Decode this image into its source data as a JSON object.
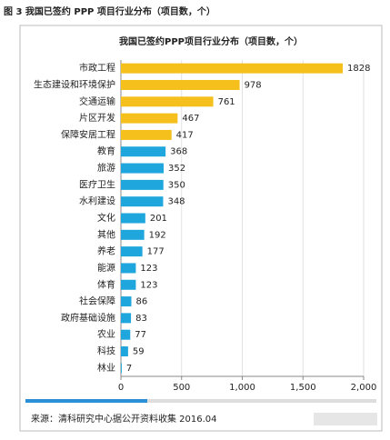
{
  "chart_data": {
    "type": "bar",
    "orientation": "horizontal",
    "caption": "图 3  我国已签约 PPP 项目行业分布（项目数，个）",
    "title": "我国已签约PPP项目行业分布（项目数，个）",
    "categories": [
      "市政工程",
      "生态建设和环境保护",
      "交通运输",
      "片区开发",
      "保障安居工程",
      "教育",
      "旅游",
      "医疗卫生",
      "水利建设",
      "文化",
      "其他",
      "养老",
      "能源",
      "体育",
      "社会保障",
      "政府基础设施",
      "农业",
      "科技",
      "林业"
    ],
    "values": [
      1828,
      978,
      761,
      467,
      417,
      368,
      352,
      350,
      348,
      201,
      192,
      177,
      123,
      123,
      86,
      83,
      77,
      59,
      7
    ],
    "colors": [
      "#f5bf1c",
      "#f5bf1c",
      "#f5bf1c",
      "#f5bf1c",
      "#f5bf1c",
      "#1fa6dc",
      "#1fa6dc",
      "#1fa6dc",
      "#1fa6dc",
      "#1fa6dc",
      "#1fa6dc",
      "#1fa6dc",
      "#1fa6dc",
      "#1fa6dc",
      "#1fa6dc",
      "#1fa6dc",
      "#1fa6dc",
      "#1fa6dc",
      "#1fa6dc"
    ],
    "xlim": [
      0,
      2000
    ],
    "xticks": [
      0,
      500,
      {
        "value": 1000,
        "label": "1,000"
      },
      {
        "value": 1500,
        "label": "1,500"
      },
      {
        "value": 2000,
        "label": "2,000"
      }
    ],
    "grid": true,
    "source": "来源：清科研究中心据公开资料收集 2016.04"
  }
}
